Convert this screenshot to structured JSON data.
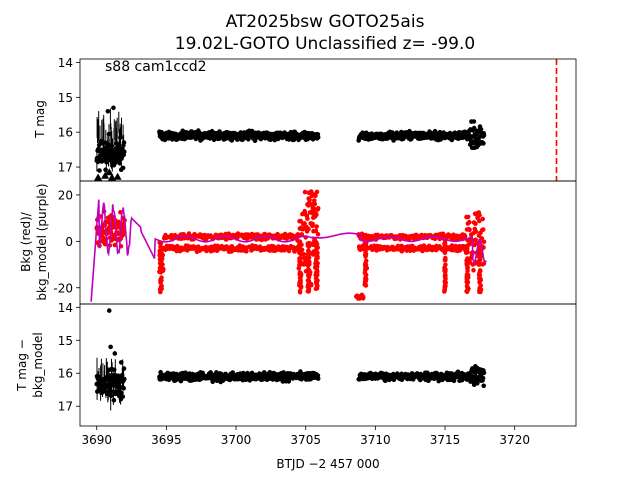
{
  "title_line1": "AT2025bsw  GOTO25ais",
  "title_line2": "19.02L-GOTO Unclassified z= -99.0",
  "annotation": "s88 cam1ccd2",
  "xlabel": "BTJD −2 457 000",
  "colors": {
    "points": "#000000",
    "bkg": "#ff0000",
    "bkg_model": "#bf00bf",
    "marker_line": "#ff0000"
  },
  "chart_data": [
    {
      "type": "scatter",
      "panel": "top",
      "ylabel": "T mag",
      "ylim": [
        17.4,
        13.9
      ],
      "yticks": [
        14,
        15,
        16,
        17
      ],
      "xlim": [
        3688.8,
        3724.4
      ],
      "vline_x": 3723.0,
      "series": [
        {
          "segments": [
            [
              3690.0,
              3692.0
            ],
            [
              3694.5,
              3707.8
            ],
            [
              3708.8,
              3717.8
            ]
          ],
          "level": [
            16.1,
            16.1,
            16.1
          ],
          "note_text": ""
        }
      ],
      "outliers": [
        [
          3690.8,
          15.4
        ],
        [
          3691.2,
          15.3
        ],
        [
          3690.5,
          16.6
        ],
        [
          3691.0,
          16.8
        ],
        [
          3690.2,
          17.1
        ]
      ]
    },
    {
      "type": "line",
      "panel": "middle",
      "ylabel": "Bkg (red)/\nbkg_model (purple)",
      "ylim": [
        -27,
        26
      ],
      "yticks": [
        -20,
        0,
        20
      ],
      "xlim": [
        3688.8,
        3724.4
      ]
    },
    {
      "type": "scatter",
      "panel": "bottom",
      "ylabel": "T mag −\nbkg_model",
      "ylim": [
        17.6,
        13.9
      ],
      "yticks": [
        14,
        15,
        16,
        17
      ],
      "xlim": [
        3688.8,
        3724.4
      ],
      "xticks": [
        3690,
        3695,
        3700,
        3705,
        3710,
        3715,
        3720
      ]
    }
  ]
}
